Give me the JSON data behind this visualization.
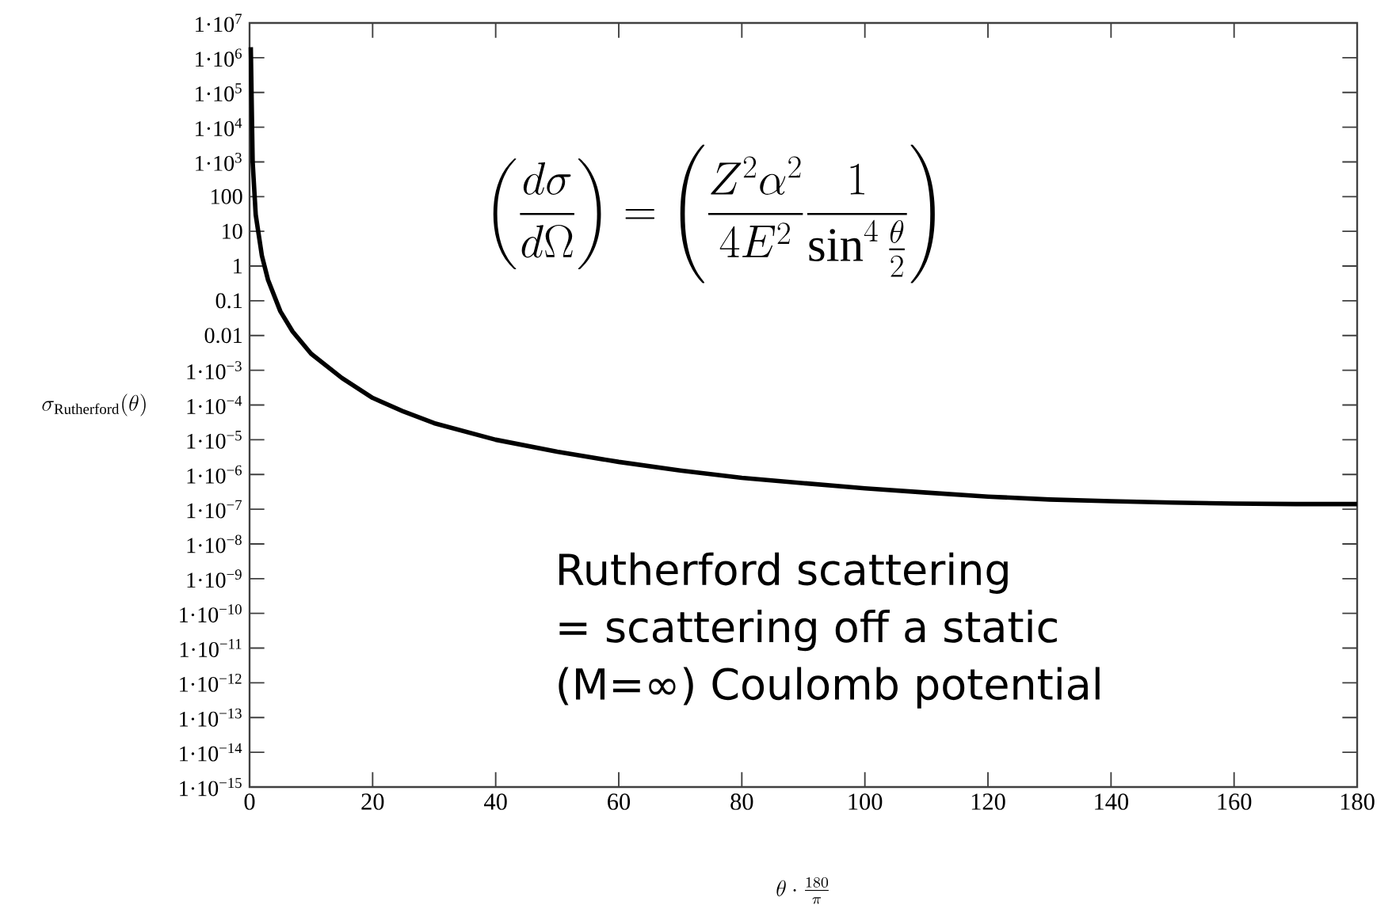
{
  "chart_data": {
    "type": "line",
    "xlabel": "\\theta\\cdot\\frac{180}{\\pi}",
    "ylabel": "\\sigma_{\\mathrm{Rutherford}}(\\theta)",
    "x": [
      0.2,
      0.5,
      1,
      2,
      3,
      5,
      7,
      10,
      15,
      20,
      25,
      30,
      40,
      50,
      60,
      70,
      80,
      90,
      100,
      110,
      120,
      130,
      140,
      150,
      160,
      170,
      180
    ],
    "series": [
      {
        "color": "#000000",
        "values": [
          2000000.0,
          1000.0,
          30,
          2,
          0.4,
          0.05,
          0.013,
          0.003,
          0.0006,
          0.00016,
          6.5e-05,
          3e-05,
          1e-05,
          4.5e-06,
          2.3e-06,
          1.3e-06,
          8e-07,
          5.6e-07,
          4e-07,
          3e-07,
          2.3e-07,
          1.9e-07,
          1.7e-07,
          1.55e-07,
          1.45e-07,
          1.4e-07,
          1.4e-07
        ]
      }
    ],
    "log": "y",
    "xlim": [
      0,
      180
    ],
    "ylim": [
      1e-15,
      10000000.0
    ],
    "xticks": [
      0,
      20,
      40,
      60,
      80,
      100,
      120,
      140,
      160,
      180
    ],
    "yticks": [
      {
        "value": 10000000.0,
        "label": "1·10$^{7}$"
      },
      {
        "value": 1000000.0,
        "label": "1·10$^{6}$"
      },
      {
        "value": 100000.0,
        "label": "1·10$^{5}$"
      },
      {
        "value": 10000.0,
        "label": "1·10$^{4}$"
      },
      {
        "value": 1000.0,
        "label": "1·10$^{3}$"
      },
      100,
      10,
      1,
      0.1,
      0.01,
      {
        "value": 0.001,
        "label": "1·10$^{−3}$"
      },
      {
        "value": 0.0001,
        "label": "1·10$^{−4}$"
      },
      {
        "value": 1e-05,
        "label": "1·10$^{−5}$"
      },
      {
        "value": 1e-06,
        "label": "1·10$^{−6}$"
      },
      {
        "value": 1e-07,
        "label": "1·10$^{−7}$"
      },
      {
        "value": 1e-08,
        "label": "1·10$^{−8}$"
      },
      {
        "value": 1e-09,
        "label": "1·10$^{−9}$"
      },
      {
        "value": 1e-10,
        "label": "1·10$^{−10}$"
      },
      {
        "value": 1e-11,
        "label": "1·10$^{−11}$"
      },
      {
        "value": 1e-12,
        "label": "1·10$^{−12}$"
      },
      {
        "value": 1e-13,
        "label": "1·10$^{−13}$"
      },
      {
        "value": 1e-14,
        "label": "1·10$^{−14}$"
      },
      {
        "value": 1e-15,
        "label": "1·10$^{−15}$"
      }
    ],
    "annotations": [
      "\\left(\\frac{d\\sigma}{d\\Omega}\\right) = \\left(\\frac{Z^2\\alpha^2}{4E^2}\\frac{1}{\\sin^4\\frac{\\theta}{2}}\\right)",
      "Rutherford scattering",
      "= scattering off a static",
      "(M=∞) Coulomb potential"
    ],
    "grid": false,
    "marker": "none",
    "line_style": "solid"
  }
}
